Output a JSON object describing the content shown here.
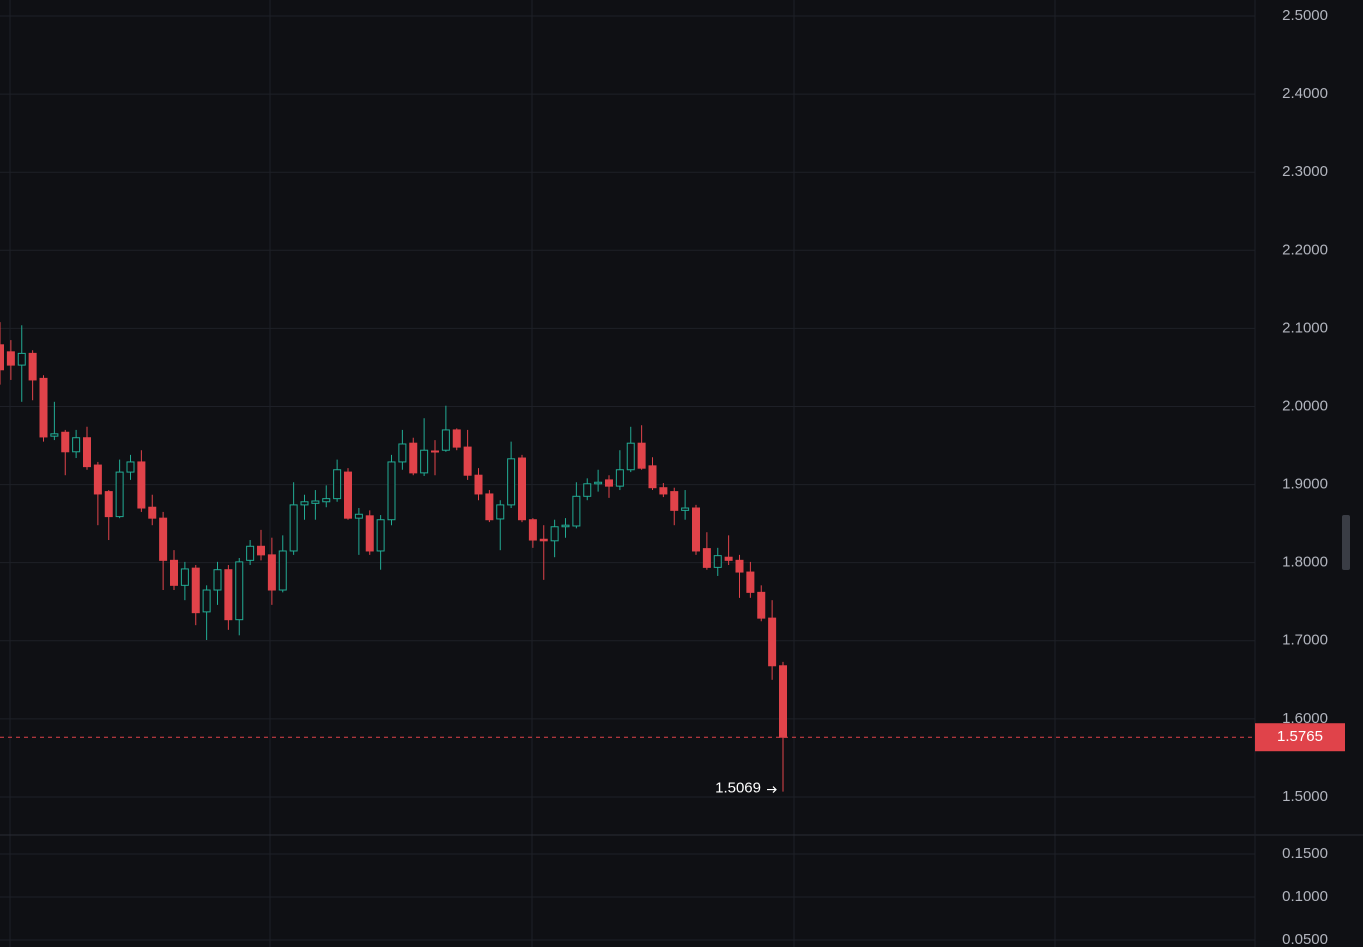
{
  "chart_data": [
    {
      "type": "candlestick",
      "open": [
        2.079,
        2.07,
        2.053,
        2.068,
        2.036,
        1.962,
        1.967,
        1.942,
        1.96,
        1.925,
        1.891,
        1.859,
        1.916,
        1.929,
        1.871,
        1.857,
        1.803,
        1.771,
        1.793,
        1.737,
        1.765,
        1.791,
        1.727,
        1.803,
        1.821,
        1.81,
        1.765,
        1.815,
        1.874,
        1.876,
        1.878,
        1.882,
        1.916,
        1.857,
        1.86,
        1.815,
        1.855,
        1.929,
        1.953,
        1.915,
        1.943,
        1.944,
        1.97,
        1.948,
        1.912,
        1.888,
        1.856,
        1.874,
        1.934,
        1.855,
        1.83,
        1.828,
        1.846,
        1.847,
        1.885,
        1.901,
        1.906,
        1.898,
        1.919,
        1.953,
        1.924,
        1.896,
        1.891,
        1.867,
        1.87,
        1.818,
        1.794,
        1.807,
        1.803,
        1.788,
        1.762,
        1.729,
        1.668
      ],
      "high": [
        2.108,
        2.085,
        2.104,
        2.072,
        2.04,
        2.006,
        1.97,
        1.97,
        1.974,
        1.929,
        1.893,
        1.932,
        1.938,
        1.944,
        1.887,
        1.865,
        1.816,
        1.801,
        1.797,
        1.771,
        1.801,
        1.797,
        1.806,
        1.829,
        1.842,
        1.832,
        1.835,
        1.903,
        1.887,
        1.893,
        1.899,
        1.932,
        1.921,
        1.87,
        1.867,
        1.861,
        1.938,
        1.97,
        1.96,
        1.985,
        1.957,
        2.001,
        1.972,
        1.97,
        1.921,
        1.893,
        1.88,
        1.955,
        1.938,
        1.857,
        1.848,
        1.855,
        1.857,
        1.903,
        1.908,
        1.919,
        1.912,
        1.944,
        1.974,
        1.976,
        1.935,
        1.902,
        1.896,
        1.893,
        1.874,
        1.839,
        1.819,
        1.835,
        1.81,
        1.801,
        1.771,
        1.752,
        1.673
      ],
      "low": [
        2.028,
        2.034,
        2.006,
        2.008,
        1.955,
        1.957,
        1.912,
        1.934,
        1.919,
        1.848,
        1.829,
        1.857,
        1.906,
        1.865,
        1.848,
        1.765,
        1.765,
        1.752,
        1.72,
        1.701,
        1.746,
        1.714,
        1.707,
        1.797,
        1.803,
        1.746,
        1.762,
        1.81,
        1.855,
        1.855,
        1.871,
        1.878,
        1.855,
        1.81,
        1.81,
        1.791,
        1.848,
        1.919,
        1.912,
        1.911,
        1.912,
        1.942,
        1.944,
        1.906,
        1.88,
        1.852,
        1.816,
        1.87,
        1.852,
        1.819,
        1.778,
        1.807,
        1.832,
        1.844,
        1.88,
        1.891,
        1.883,
        1.893,
        1.916,
        1.919,
        1.893,
        1.884,
        1.848,
        1.855,
        1.81,
        1.791,
        1.783,
        1.797,
        1.755,
        1.755,
        1.725,
        1.65,
        1.5069
      ],
      "close": [
        2.047,
        2.053,
        2.068,
        2.034,
        1.961,
        1.965,
        1.942,
        1.96,
        1.923,
        1.888,
        1.859,
        1.916,
        1.929,
        1.87,
        1.857,
        1.803,
        1.771,
        1.792,
        1.736,
        1.765,
        1.791,
        1.727,
        1.801,
        1.821,
        1.81,
        1.765,
        1.815,
        1.874,
        1.878,
        1.879,
        1.882,
        1.919,
        1.857,
        1.862,
        1.815,
        1.855,
        1.929,
        1.952,
        1.915,
        1.944,
        1.942,
        1.97,
        1.948,
        1.912,
        1.888,
        1.855,
        1.874,
        1.933,
        1.855,
        1.829,
        1.828,
        1.846,
        1.848,
        1.885,
        1.901,
        1.903,
        1.898,
        1.919,
        1.953,
        1.921,
        1.896,
        1.888,
        1.867,
        1.87,
        1.815,
        1.794,
        1.809,
        1.803,
        1.788,
        1.762,
        1.729,
        1.668,
        1.5765
      ],
      "up_color": "#22ab94",
      "down_color": "#e0434a",
      "ylim": [
        1.4513,
        2.5205
      ],
      "yticks": [
        {
          "value": 1.5,
          "label": "1.5000"
        },
        {
          "value": 1.6,
          "label": "1.6000"
        },
        {
          "value": 1.7,
          "label": "1.7000"
        },
        {
          "value": 1.8,
          "label": "1.8000"
        },
        {
          "value": 1.9,
          "label": "1.9000"
        },
        {
          "value": 2.0,
          "label": "2.0000"
        },
        {
          "value": 2.1,
          "label": "2.1000"
        },
        {
          "value": 2.2,
          "label": "2.2000"
        },
        {
          "value": 2.3,
          "label": "2.3000"
        },
        {
          "value": 2.4,
          "label": "2.4000"
        },
        {
          "value": 2.5,
          "label": "2.5000"
        }
      ],
      "grid": true
    },
    {
      "type": "volume",
      "ylim": [
        0.0419,
        0.1721
      ],
      "yticks": [
        {
          "value": 0.05,
          "label": "0.0500"
        },
        {
          "value": 0.1,
          "label": "0.1000"
        },
        {
          "value": 0.15,
          "label": "0.1500"
        }
      ],
      "grid": true
    }
  ]
}
